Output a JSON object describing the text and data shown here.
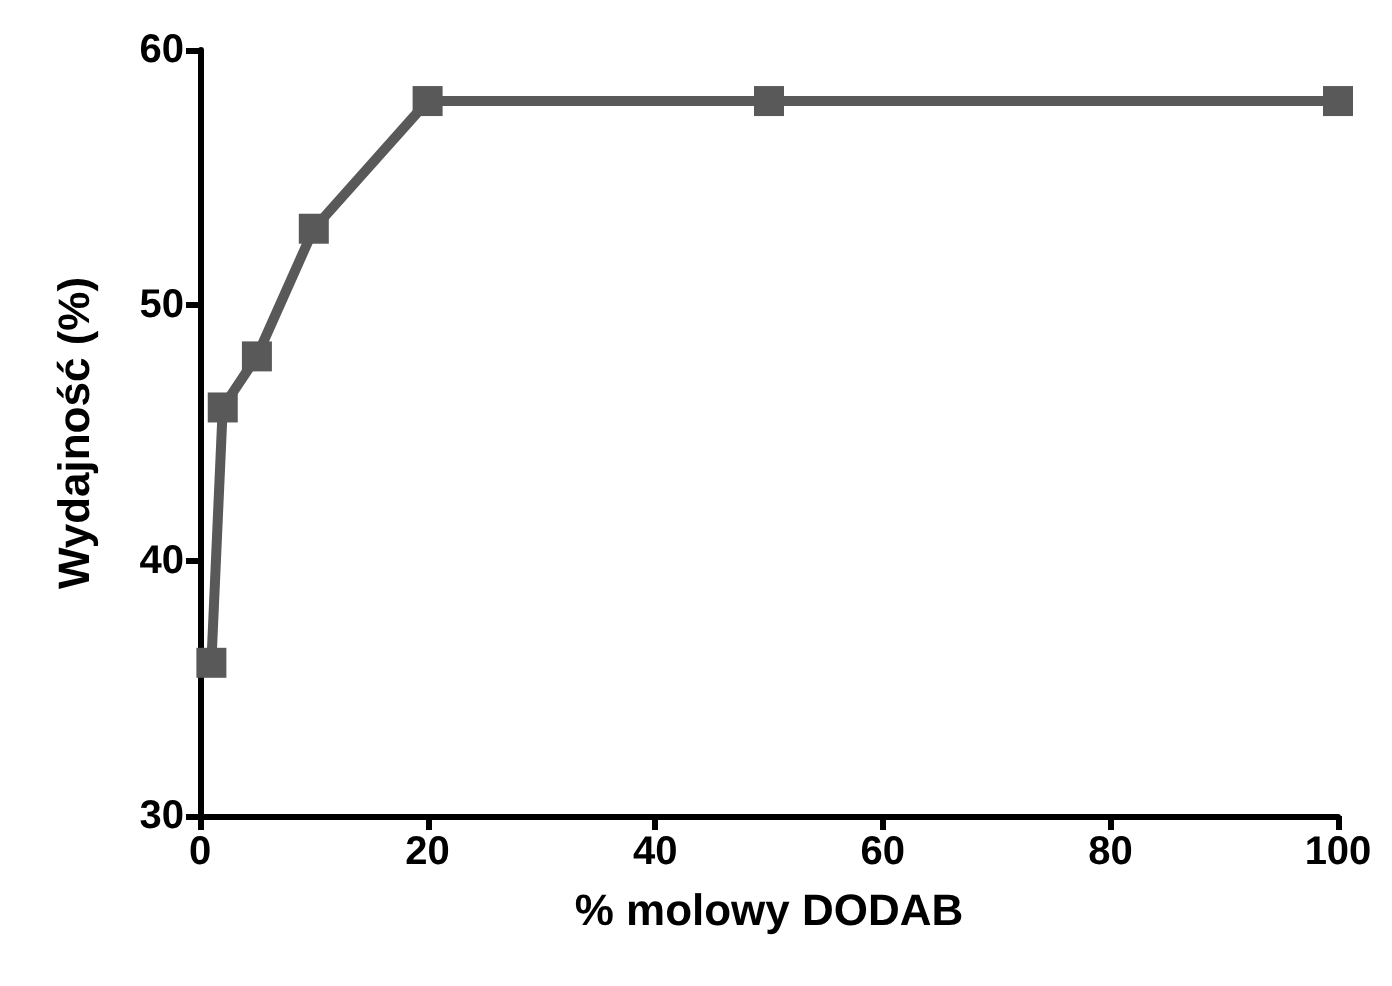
{
  "chart_data": {
    "type": "line",
    "xlabel": "% molowy DODAB",
    "ylabel": "Wydajność (%)",
    "x": [
      1,
      2,
      5,
      10,
      20,
      50,
      100
    ],
    "series": [
      {
        "color": "#595959",
        "values": [
          36,
          46,
          48,
          53,
          58,
          58,
          58
        ]
      }
    ],
    "xlim": [
      0,
      100
    ],
    "xticks": [
      0,
      20,
      40,
      60,
      80,
      100
    ],
    "ylim": [
      30,
      60
    ],
    "yticks": [
      30,
      40,
      50,
      60
    ],
    "marker": "square",
    "line_style": "solid"
  }
}
